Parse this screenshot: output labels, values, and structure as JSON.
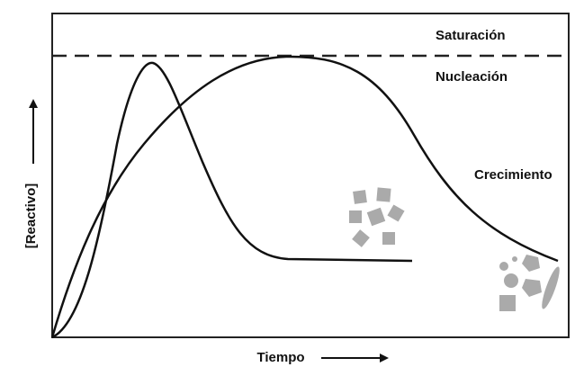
{
  "labels": {
    "saturation": "Saturación",
    "nucleation": "Nucleación",
    "growth": "Crecimiento"
  },
  "axes": {
    "x": "Tiempo",
    "y": "[Reactivo]"
  }
}
